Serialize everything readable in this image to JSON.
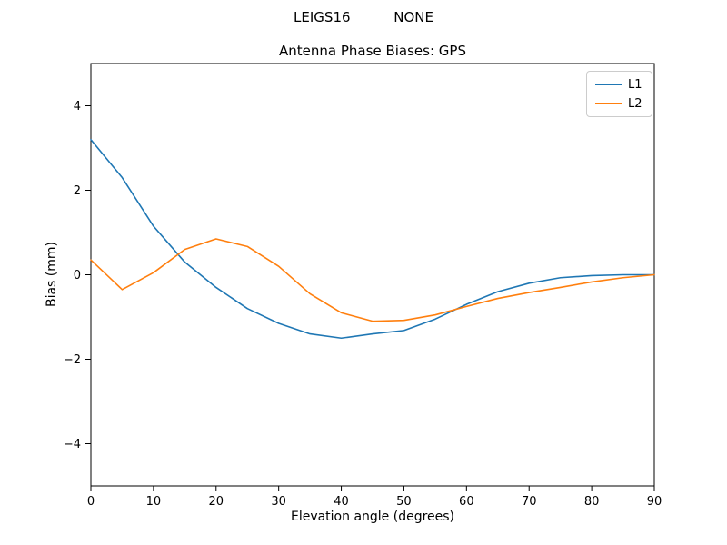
{
  "figure": {
    "suptitle": "LEIGS16          NONE"
  },
  "chart_data": {
    "type": "line",
    "title": "Antenna Phase Biases: GPS",
    "xlabel": "Elevation angle (degrees)",
    "ylabel": "Bias (mm)",
    "xlim": [
      0,
      90
    ],
    "ylim": [
      -5,
      5
    ],
    "xticks": [
      0,
      10,
      20,
      30,
      40,
      50,
      60,
      70,
      80,
      90
    ],
    "yticks": [
      -4,
      -2,
      0,
      2,
      4
    ],
    "grid": false,
    "legend_position": "upper right",
    "x": [
      0,
      5,
      10,
      15,
      20,
      25,
      30,
      35,
      40,
      45,
      50,
      55,
      60,
      65,
      70,
      75,
      80,
      85,
      90
    ],
    "series": [
      {
        "name": "L1",
        "color": "#1f77b4",
        "values": [
          3.2,
          2.3,
          1.15,
          0.3,
          -0.3,
          -0.8,
          -1.15,
          -1.4,
          -1.5,
          -1.4,
          -1.32,
          -1.05,
          -0.7,
          -0.4,
          -0.2,
          -0.07,
          -0.02,
          0.0,
          0.0
        ]
      },
      {
        "name": "L2",
        "color": "#ff7f0e",
        "values": [
          0.35,
          -0.35,
          0.05,
          0.6,
          0.85,
          0.67,
          0.2,
          -0.45,
          -0.9,
          -1.1,
          -1.08,
          -0.95,
          -0.75,
          -0.56,
          -0.42,
          -0.3,
          -0.17,
          -0.07,
          0.0
        ]
      }
    ]
  },
  "layout_colors": {
    "spine": "#000000",
    "background": "#ffffff"
  }
}
